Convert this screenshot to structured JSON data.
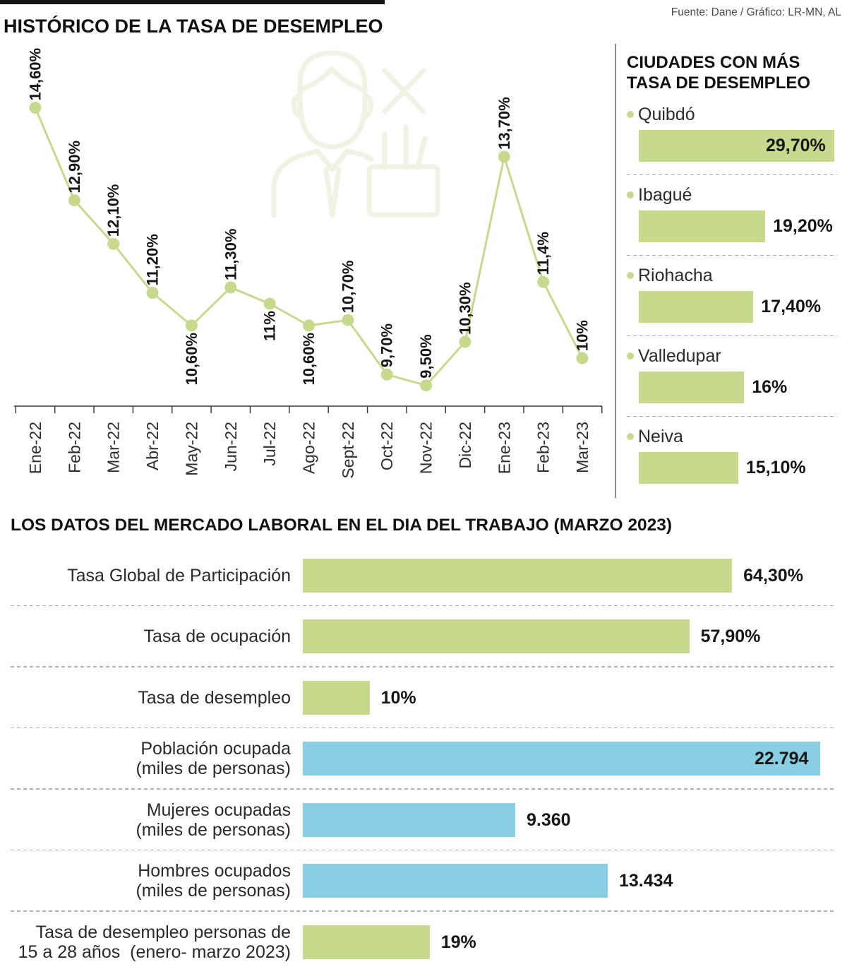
{
  "header": {
    "source": "Fuente: Dane / Gráfico: LR-MN, AL"
  },
  "colors": {
    "green": "#c6d98d",
    "blue": "#89cee3",
    "text": "#161616",
    "rule": "#141414"
  },
  "icons": {
    "watermark": "unemployed-person-icon",
    "bullet": "bullet-dot-icon"
  },
  "chart_data": [
    {
      "type": "line",
      "title": "HISTÓRICO DE LA TASA DE DESEMPLEO",
      "categories": [
        "Ene-22",
        "Feb-22",
        "Mar-22",
        "Abr-22",
        "May-22",
        "Jun-22",
        "Jul-22",
        "Ago-22",
        "Sept-22",
        "Oct-22",
        "Nov-22",
        "Dic-22",
        "Ene-23",
        "Feb-23",
        "Mar-23"
      ],
      "values": [
        14.6,
        12.9,
        12.1,
        11.2,
        10.6,
        11.3,
        11,
        10.6,
        10.7,
        9.7,
        9.5,
        10.3,
        13.7,
        11.4,
        10
      ],
      "labels": [
        "14,60%",
        "12,90%",
        "12,10%",
        "11,20%",
        "10,60%",
        "11,30%",
        "11%",
        "10,60%",
        "10,70%",
        "9,70%",
        "9,50%",
        "10,30%",
        "13,70%",
        "11,4%",
        "10%"
      ],
      "ylim": [
        9.12,
        15.8
      ],
      "grid": false,
      "color": "#c6d98d"
    },
    {
      "type": "bar",
      "orientation": "horizontal",
      "title": "CIUDADES CON MÁS TASA DE DESEMPLEO",
      "categories": [
        "Quibdó",
        "Ibagué",
        "Riohacha",
        "Valledupar",
        "Neiva"
      ],
      "values": [
        29.7,
        19.2,
        17.4,
        16,
        15.1
      ],
      "labels": [
        "29,70%",
        "19,20%",
        "17,40%",
        "16%",
        "15,10%"
      ],
      "xlim": [
        0,
        29.7
      ],
      "grid": false,
      "color": "#c6d98d"
    },
    {
      "type": "bar",
      "orientation": "horizontal",
      "title": "LOS DATOS DEL MERCADO LABORAL EN EL DIA DEL TRABAJO (MARZO 2023)",
      "categories": [
        "Tasa Global de Participación",
        "Tasa de ocupación",
        "Tasa de desempleo",
        "Población ocupada\n(miles de personas)",
        "Mujeres ocupadas\n(miles de personas)",
        "Hombres ocupados\n(miles de personas)",
        "Tasa de desempleo personas de\n15 a 28 años  (enero- marzo 2023)"
      ],
      "series": [
        {
          "values": [
            64.3,
            57.9,
            10,
            null,
            null,
            null,
            19
          ],
          "xlim": [
            0,
            77.5
          ],
          "color": "#c6d98d"
        },
        {
          "values": [
            null,
            null,
            null,
            22794,
            9360,
            13434,
            null
          ],
          "xlim": [
            0,
            22794
          ],
          "color": "#89cee3"
        }
      ],
      "labels": [
        "64,30%",
        "57,90%",
        "10%",
        "22.794",
        "9.360",
        "13.434",
        "19%"
      ],
      "grid": false
    }
  ]
}
